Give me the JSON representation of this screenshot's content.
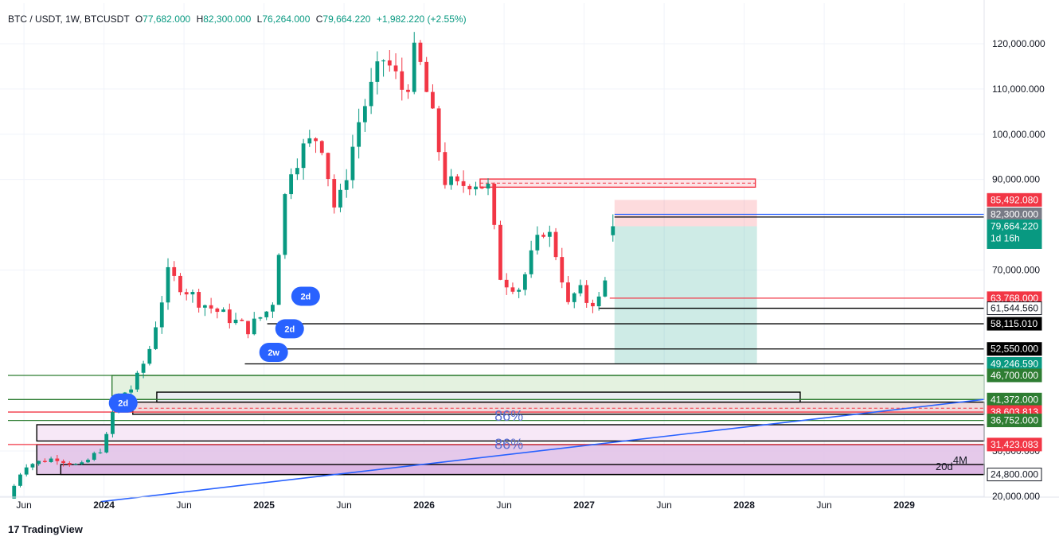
{
  "header": {
    "symbol": "BTC / USDT, 1W, BTCUSDT",
    "open_label": "O",
    "open": "77,682.000",
    "high_label": "H",
    "high": "82,300.000",
    "low_label": "L",
    "low": "76,264.000",
    "close_label": "C",
    "close": "79,664.220",
    "change": "+1,982.220 (+2.55%)"
  },
  "brand": {
    "logo": "17",
    "name": "TradingView"
  },
  "colors": {
    "up": "#089981",
    "down": "#f23645",
    "blue": "#2962ff",
    "green": "#2e7d32",
    "zone_pink": "#f8c8cc",
    "zone_purple": "#e1bee7",
    "zone_green": "#c8e6c9"
  },
  "chart_data": {
    "type": "candlestick",
    "timeframe": "1W",
    "ylim": [
      17500,
      127000
    ],
    "y_ticks": [
      {
        "v": 20000,
        "label": "20,000.000"
      },
      {
        "v": 30000,
        "label": "30,000.000"
      },
      {
        "v": 70000,
        "label": "70,000.000"
      },
      {
        "v": 90000,
        "label": "90,000.000"
      },
      {
        "v": 100000,
        "label": "100,000.000"
      },
      {
        "v": 110000,
        "label": "110,000.000"
      },
      {
        "v": 120000,
        "label": "120,000.000"
      }
    ],
    "x_ticks": [
      {
        "t": 0.1,
        "label": "Jun",
        "bold": false
      },
      {
        "t": 0.6,
        "label": "2024",
        "bold": true
      },
      {
        "t": 1.1,
        "label": "Jun",
        "bold": false
      },
      {
        "t": 1.6,
        "label": "2025",
        "bold": true
      },
      {
        "t": 2.1,
        "label": "Jun",
        "bold": false
      },
      {
        "t": 2.6,
        "label": "2026",
        "bold": true
      },
      {
        "t": 3.1,
        "label": "Jun",
        "bold": false
      },
      {
        "t": 3.6,
        "label": "2027",
        "bold": true
      },
      {
        "t": 4.1,
        "label": "Jun",
        "bold": false
      },
      {
        "t": 4.6,
        "label": "2028",
        "bold": true
      },
      {
        "t": 5.1,
        "label": "Jun",
        "bold": false
      },
      {
        "t": 5.6,
        "label": "2029",
        "bold": true
      }
    ],
    "price_labels": [
      {
        "v": 85492.08,
        "label": "85,492.080",
        "bg": "#f23645",
        "fg": "#ffffff"
      },
      {
        "v": 82300,
        "label": "82,300.000",
        "bg": "#787b86",
        "fg": "#ffffff"
      },
      {
        "v": 79664.22,
        "label": "79,664.220",
        "bg": "#089981",
        "fg": "#ffffff",
        "extra": "1d 16h"
      },
      {
        "v": 63768,
        "label": "63,768.000",
        "bg": "#f23645",
        "fg": "#ffffff"
      },
      {
        "v": 61544.56,
        "label": "61,544.560",
        "bg": "#ffffff",
        "fg": "#131722"
      },
      {
        "v": 58115.01,
        "label": "58,115.010",
        "bg": "#000000",
        "fg": "#ffffff"
      },
      {
        "v": 52550,
        "label": "52,550.000",
        "bg": "#000000",
        "fg": "#ffffff"
      },
      {
        "v": 49246.59,
        "label": "49,246.590",
        "bg": "#089981",
        "fg": "#ffffff"
      },
      {
        "v": 46700,
        "label": "46,700.000",
        "bg": "#2e7d32",
        "fg": "#ffffff"
      },
      {
        "v": 41372,
        "label": "41,372.000",
        "bg": "#2e7d32",
        "fg": "#ffffff"
      },
      {
        "v": 38603.813,
        "label": "38,603.813",
        "bg": "#f23645",
        "fg": "#ffffff"
      },
      {
        "v": 36752,
        "label": "36,752.000",
        "bg": "#2e7d32",
        "fg": "#ffffff"
      },
      {
        "v": 31423.083,
        "label": "31,423.083",
        "bg": "#f23645",
        "fg": "#ffffff"
      },
      {
        "v": 24800,
        "label": "24,800.000",
        "bg": "#ffffff",
        "fg": "#131722"
      }
    ],
    "annotations": [
      {
        "t": 1.86,
        "v": 64200,
        "label": "2d"
      },
      {
        "t": 1.76,
        "v": 57000,
        "label": "2d"
      },
      {
        "t": 1.66,
        "v": 51800,
        "label": "2w"
      },
      {
        "t": 0.72,
        "v": 40600,
        "label": "2d"
      }
    ],
    "text_marks": [
      {
        "t": 3.13,
        "v": 36700,
        "label": "86%"
      },
      {
        "t": 3.13,
        "v": 30400,
        "label": "86%"
      },
      {
        "t": 5.85,
        "v": 25800,
        "label": "20d"
      },
      {
        "t": 5.95,
        "v": 27200,
        "label": "4M"
      }
    ],
    "anchors": [
      {
        "t": 0.0,
        "v": 19500
      },
      {
        "t": 0.1,
        "v": 26800
      },
      {
        "t": 0.3,
        "v": 28500
      },
      {
        "t": 0.45,
        "v": 26500
      },
      {
        "t": 0.6,
        "v": 31000
      },
      {
        "t": 0.68,
        "v": 42000
      },
      {
        "t": 0.78,
        "v": 44000
      },
      {
        "t": 0.88,
        "v": 52000
      },
      {
        "t": 1.0,
        "v": 69000
      },
      {
        "t": 1.2,
        "v": 63000
      },
      {
        "t": 1.35,
        "v": 60000
      },
      {
        "t": 1.5,
        "v": 57000
      },
      {
        "t": 1.65,
        "v": 62000
      },
      {
        "t": 1.75,
        "v": 92000
      },
      {
        "t": 1.85,
        "v": 97000
      },
      {
        "t": 1.95,
        "v": 100000
      },
      {
        "t": 2.05,
        "v": 82000
      },
      {
        "t": 2.2,
        "v": 104000
      },
      {
        "t": 2.35,
        "v": 117000
      },
      {
        "t": 2.48,
        "v": 109000
      },
      {
        "t": 2.55,
        "v": 119000
      },
      {
        "t": 2.65,
        "v": 104000
      },
      {
        "t": 2.73,
        "v": 90000
      },
      {
        "t": 2.8,
        "v": 88000
      },
      {
        "t": 2.9,
        "v": 90000
      },
      {
        "t": 3.0,
        "v": 88000
      },
      {
        "t": 3.08,
        "v": 68000
      },
      {
        "t": 3.2,
        "v": 66000
      },
      {
        "t": 3.28,
        "v": 74000
      },
      {
        "t": 3.36,
        "v": 80000
      },
      {
        "t": 3.44,
        "v": 72000
      },
      {
        "t": 3.5,
        "v": 62000
      },
      {
        "t": 3.56,
        "v": 66000
      },
      {
        "t": 3.62,
        "v": 63000
      },
      {
        "t": 3.72,
        "v": 63500
      },
      {
        "t": 3.76,
        "v": 77682
      },
      {
        "t": 3.78,
        "v": 79664
      }
    ],
    "last_bar": {
      "open": 77682,
      "high": 82300,
      "low": 76264,
      "close": 79664.22
    },
    "drawings": {
      "blue_trendline": {
        "t1": 0.58,
        "v1": 18800,
        "t2": 6.2,
        "v2": 41400
      },
      "long_position": {
        "t1": 3.79,
        "t2": 4.68,
        "entry": 79664.22,
        "stop": 49246.59,
        "target": 85492.08
      },
      "horizontal_lines": [
        {
          "v": 82300,
          "t1": 3.79,
          "color": "#2962ff"
        },
        {
          "v": 81700,
          "t1": 3.79,
          "color": "#000000"
        },
        {
          "v": 63768,
          "t1": 3.76,
          "color": "#f23645"
        },
        {
          "v": 61544.56,
          "t1": 3.69,
          "color": "#000000"
        },
        {
          "v": 58115.01,
          "t1": 1.62,
          "color": "#000000"
        },
        {
          "v": 52550,
          "t1": 1.7,
          "color": "#000000"
        },
        {
          "v": 49246.59,
          "t1": 1.48,
          "color": "#000000"
        },
        {
          "v": 46700,
          "t1": 0.0,
          "color": "#2e7d32"
        },
        {
          "v": 41372,
          "t1": 0.0,
          "color": "#2e7d32"
        },
        {
          "v": 38603.813,
          "t1": 0.0,
          "color": "#f23645"
        },
        {
          "v": 36752,
          "t1": 0.0,
          "color": "#2e7d32"
        },
        {
          "v": 31423.083,
          "t1": 0.0,
          "color": "#f23645"
        }
      ],
      "zones": [
        {
          "t1": 0.65,
          "t2": 6.2,
          "v1": 46700,
          "v2": 41372,
          "fill": "#dff0db",
          "stroke": "#2e7d32"
        },
        {
          "t1": 0.78,
          "t2": 6.2,
          "v1": 40800,
          "v2": 38100,
          "fill": "#ecd3d6",
          "stroke": "#000000"
        },
        {
          "t1": 0.93,
          "t2": 4.95,
          "v1": 43000,
          "v2": 40800,
          "fill": "#ececf4",
          "stroke": "#000000"
        },
        {
          "t1": 0.18,
          "t2": 6.2,
          "v1": 35800,
          "v2": 32200,
          "fill": "#f6e4f6",
          "stroke": "#000000"
        },
        {
          "t1": 0.18,
          "t2": 6.2,
          "v1": 31400,
          "v2": 24800,
          "fill": "#e1bfe6",
          "stroke": "#000000"
        },
        {
          "t1": 0.33,
          "t2": 6.2,
          "v1": 27000,
          "v2": 24800,
          "fill": "#dcb4e3",
          "stroke": "#000000"
        },
        {
          "t1": 2.95,
          "t2": 4.67,
          "v1": 90100,
          "v2": 88300,
          "fill": "#fbe1e4",
          "stroke": "#f23645"
        }
      ]
    }
  }
}
